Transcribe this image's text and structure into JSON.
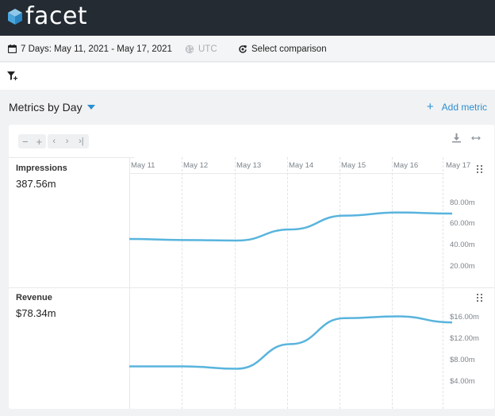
{
  "app": {
    "logo_text": "facet"
  },
  "toolbar": {
    "date_range": "7 Days: May 11, 2021 - May 17, 2021",
    "timezone": "UTC",
    "comparison": "Select comparison"
  },
  "section": {
    "title": "Metrics by Day",
    "add_metric": "Add metric"
  },
  "chart": {
    "dates": [
      "May 11",
      "May 12",
      "May 13",
      "May 14",
      "May 15",
      "May 16",
      "May 17"
    ],
    "line_color": "#58b4dd",
    "accent_color": "#2b8fd1"
  },
  "metrics": [
    {
      "name": "Impressions",
      "value": "387.56m",
      "ticks": [
        "80.00m",
        "60.00m",
        "40.00m",
        "20.00m"
      ]
    },
    {
      "name": "Revenue",
      "value": "$78.34m",
      "ticks": [
        "$16.00m",
        "$12.00m",
        "$8.00m",
        "$4.00m"
      ]
    }
  ],
  "chart_data": [
    {
      "type": "line",
      "title": "Impressions",
      "x": [
        "May 11",
        "May 12",
        "May 13",
        "May 14",
        "May 15",
        "May 16",
        "May 17"
      ],
      "series": [
        {
          "name": "Impressions",
          "values": [
            44,
            43,
            42.5,
            53,
            66,
            69,
            68
          ]
        }
      ],
      "ylim": [
        10,
        90
      ],
      "yticks": [
        "80.00m",
        "60.00m",
        "40.00m",
        "20.00m"
      ],
      "grid": true
    },
    {
      "type": "line",
      "title": "Revenue",
      "x": [
        "May 11",
        "May 12",
        "May 13",
        "May 14",
        "May 15",
        "May 16",
        "May 17"
      ],
      "series": [
        {
          "name": "Revenue",
          "values": [
            7.5,
            7.5,
            7.1,
            11.2,
            15.5,
            15.8,
            14.8
          ]
        }
      ],
      "ylim": [
        2,
        18
      ],
      "yticks": [
        "$16.00m",
        "$12.00m",
        "$8.00m",
        "$4.00m"
      ],
      "grid": true
    }
  ]
}
